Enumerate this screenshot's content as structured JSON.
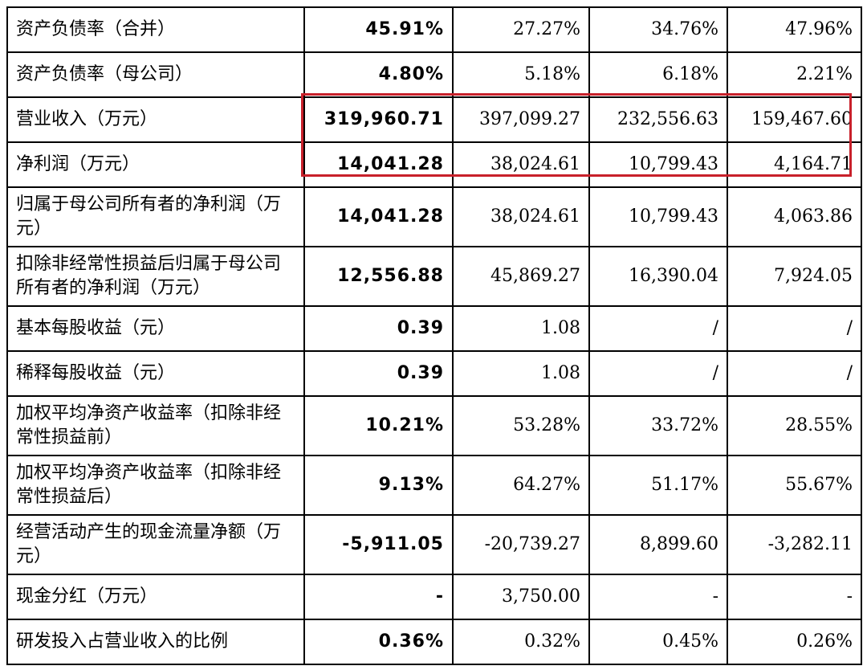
{
  "rows": [
    {
      "label": "资产负债率（合并）",
      "c1": "45.91%",
      "c2": "27.27%",
      "c3": "34.76%",
      "c4": "47.96%"
    },
    {
      "label": "资产负债率（母公司）",
      "c1": "4.80%",
      "c2": "5.18%",
      "c3": "6.18%",
      "c4": "2.21%"
    },
    {
      "label": "营业收入（万元）",
      "c1": "319,960.71",
      "c2": "397,099.27",
      "c3": "232,556.63",
      "c4": "159,467.60"
    },
    {
      "label": "净利润（万元）",
      "c1": "14,041.28",
      "c2": "38,024.61",
      "c3": "10,799.43",
      "c4": "4,164.71"
    },
    {
      "label": "归属于母公司所有者的净利润（万元）",
      "c1": "14,041.28",
      "c2": "38,024.61",
      "c3": "10,799.43",
      "c4": "4,063.86"
    },
    {
      "label": "扣除非经常性损益后归属于母公司所有者的净利润（万元）",
      "c1": "12,556.88",
      "c2": "45,869.27",
      "c3": "16,390.04",
      "c4": "7,924.05"
    },
    {
      "label": "基本每股收益（元）",
      "c1": "0.39",
      "c2": "1.08",
      "c3": "/",
      "c4": "/"
    },
    {
      "label": "稀释每股收益（元）",
      "c1": "0.39",
      "c2": "1.08",
      "c3": "/",
      "c4": "/"
    },
    {
      "label": "加权平均净资产收益率（扣除非经常性损益前）",
      "c1": "10.21%",
      "c2": "53.28%",
      "c3": "33.72%",
      "c4": "28.55%"
    },
    {
      "label": "加权平均净资产收益率（扣除非经常性损益后）",
      "c1": "9.13%",
      "c2": "64.27%",
      "c3": "51.17%",
      "c4": "55.67%"
    },
    {
      "label": "经营活动产生的现金流量净额（万元）",
      "c1": "-5,911.05",
      "c2": "-20,739.27",
      "c3": "8,899.60",
      "c4": "-3,282.11"
    },
    {
      "label": "现金分红（万元）",
      "c1": "-",
      "c2": "3,750.00",
      "c3": "-",
      "c4": "-"
    },
    {
      "label": "研发投入占营业收入的比例",
      "c1": "0.36%",
      "c2": "0.32%",
      "c3": "0.45%",
      "c4": "0.26%"
    }
  ],
  "colors": {
    "highlight_border": "#c8202a",
    "grid": "#000000"
  }
}
